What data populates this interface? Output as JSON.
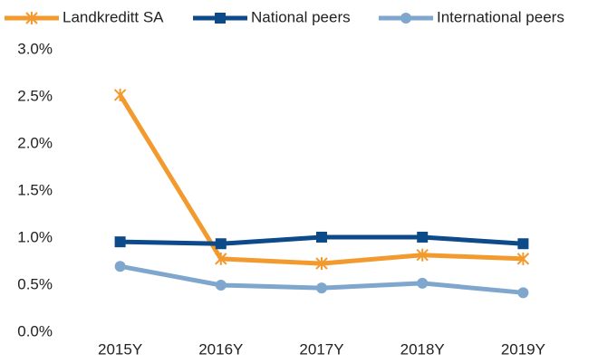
{
  "chart_data": {
    "type": "line",
    "categories": [
      "2015Y",
      "2016Y",
      "2017Y",
      "2018Y",
      "2019Y"
    ],
    "series": [
      {
        "name": "Landkreditt SA",
        "color": "#f39a2e",
        "marker": "x",
        "values": [
          2.52,
          0.78,
          0.73,
          0.82,
          0.78
        ]
      },
      {
        "name": "National peers",
        "color": "#0c4a8a",
        "marker": "square",
        "values": [
          0.96,
          0.94,
          1.01,
          1.01,
          0.94
        ]
      },
      {
        "name": "International peers",
        "color": "#7fa6cc",
        "marker": "circle",
        "values": [
          0.7,
          0.5,
          0.47,
          0.52,
          0.42
        ]
      }
    ],
    "ylim": [
      0,
      3
    ],
    "yticks": [
      {
        "value": 0,
        "label": "0.0%"
      },
      {
        "value": 0.5,
        "label": "0.5%"
      },
      {
        "value": 1,
        "label": "1.0%"
      },
      {
        "value": 1.5,
        "label": "1.5%"
      },
      {
        "value": 2,
        "label": "2.0%"
      },
      {
        "value": 2.5,
        "label": "2.5%"
      },
      {
        "value": 3,
        "label": "3.0%"
      }
    ],
    "grid": false,
    "legend": "top"
  }
}
